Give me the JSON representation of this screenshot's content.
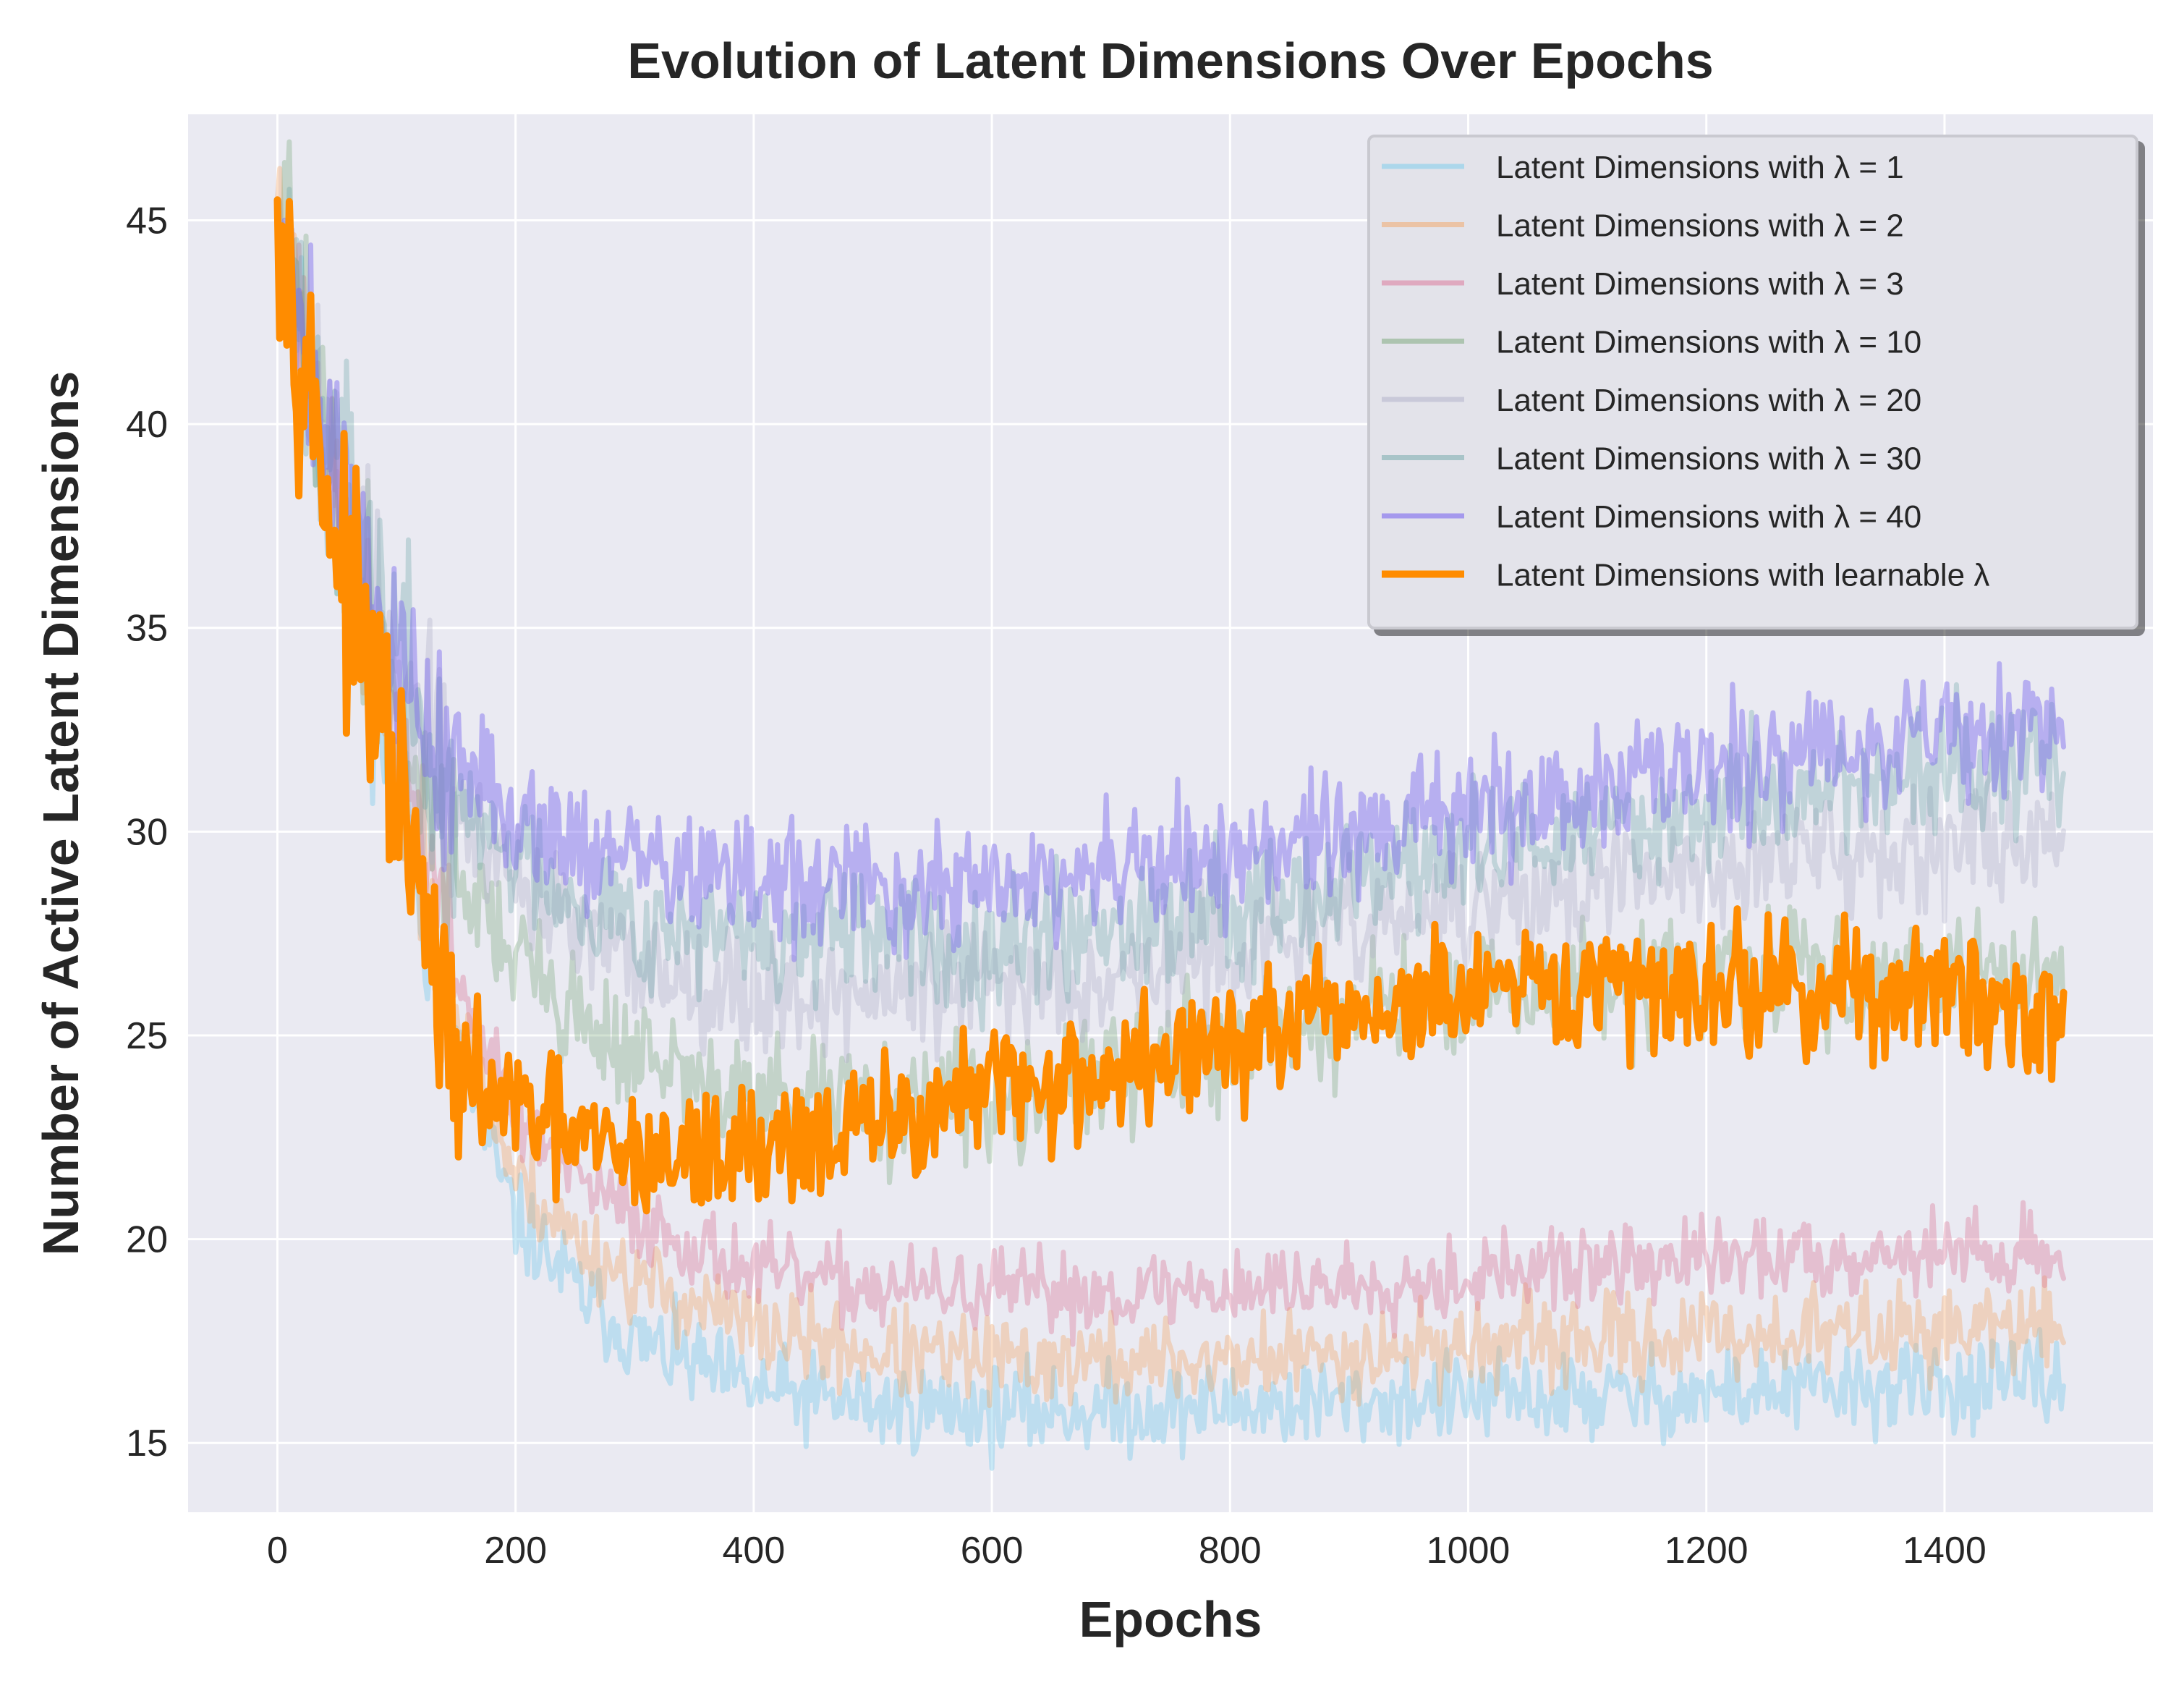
{
  "chart_data": {
    "type": "line",
    "title": "Evolution of Latent Dimensions Over Epochs",
    "xlabel": "Epochs",
    "ylabel": "Number of Active Latent Dimensions",
    "xlim": [
      -75,
      1575
    ],
    "ylim": [
      13.3,
      47.6
    ],
    "xticks": [
      0,
      200,
      400,
      600,
      800,
      1000,
      1200,
      1400
    ],
    "yticks": [
      15,
      20,
      25,
      30,
      35,
      40,
      45
    ],
    "grid": true,
    "legend_position": "top-right",
    "epochs": {
      "start": 0,
      "end": 1500
    },
    "series": [
      {
        "name": "Latent Dimensions with λ = 1",
        "color": "#87ceeb",
        "opacity": 0.45,
        "width": 7,
        "noise": 0.55,
        "seed": 11,
        "x": [
          0,
          50,
          100,
          150,
          200,
          250,
          300,
          400,
          500,
          600,
          700,
          800,
          900,
          1000,
          1100,
          1200,
          1300,
          1400,
          1500
        ],
        "y": [
          45.5,
          37.0,
          31.0,
          24.5,
          20.5,
          18.8,
          17.5,
          16.3,
          15.9,
          15.8,
          15.8,
          15.9,
          16.0,
          16.1,
          16.1,
          16.2,
          16.3,
          16.4,
          16.5
        ]
      },
      {
        "name": "Latent Dimensions with λ = 2",
        "color": "#f4a460",
        "opacity": 0.35,
        "width": 7,
        "noise": 0.55,
        "seed": 23,
        "x": [
          0,
          50,
          100,
          150,
          200,
          250,
          300,
          400,
          500,
          600,
          700,
          800,
          900,
          1000,
          1100,
          1200,
          1300,
          1400,
          1500
        ],
        "y": [
          45.5,
          37.5,
          31.5,
          25.5,
          21.5,
          20.0,
          19.0,
          17.8,
          17.2,
          17.0,
          17.0,
          17.0,
          17.2,
          17.4,
          17.5,
          17.6,
          17.7,
          17.8,
          17.8
        ]
      },
      {
        "name": "Latent Dimensions with λ = 3",
        "color": "#db7093",
        "opacity": 0.35,
        "width": 7,
        "noise": 0.5,
        "seed": 37,
        "x": [
          0,
          50,
          100,
          150,
          200,
          250,
          300,
          400,
          500,
          600,
          700,
          800,
          900,
          1000,
          1100,
          1200,
          1300,
          1400,
          1500
        ],
        "y": [
          45.5,
          38.0,
          32.5,
          26.5,
          23.0,
          21.5,
          20.5,
          19.2,
          18.8,
          18.7,
          18.7,
          18.8,
          18.9,
          19.1,
          19.3,
          19.5,
          19.6,
          19.7,
          19.6
        ]
      },
      {
        "name": "Latent Dimensions with λ = 10",
        "color": "#6b9e6b",
        "opacity": 0.3,
        "width": 7,
        "noise": 0.75,
        "seed": 41,
        "x": [
          0,
          50,
          100,
          150,
          200,
          250,
          300,
          400,
          500,
          600,
          700,
          800,
          900,
          1000,
          1100,
          1200,
          1300,
          1400,
          1500
        ],
        "y": [
          45.5,
          38.5,
          33.0,
          29.0,
          27.0,
          25.5,
          24.5,
          23.2,
          23.3,
          23.5,
          24.0,
          24.8,
          25.5,
          25.9,
          26.2,
          26.4,
          26.5,
          26.6,
          26.5
        ]
      },
      {
        "name": "Latent Dimensions with λ = 20",
        "color": "#b0b0c8",
        "opacity": 0.35,
        "width": 7,
        "noise": 0.75,
        "seed": 53,
        "x": [
          0,
          50,
          100,
          150,
          200,
          250,
          300,
          400,
          500,
          600,
          700,
          800,
          900,
          1000,
          1100,
          1200,
          1300,
          1400,
          1500
        ],
        "y": [
          45.5,
          39.0,
          33.5,
          30.5,
          29.0,
          27.5,
          26.8,
          26.0,
          26.0,
          26.2,
          26.5,
          27.0,
          27.6,
          28.1,
          28.6,
          29.1,
          29.5,
          29.8,
          29.8
        ]
      },
      {
        "name": "Latent Dimensions with λ = 30",
        "color": "#5f9ea0",
        "opacity": 0.3,
        "width": 7,
        "noise": 0.8,
        "seed": 67,
        "x": [
          0,
          50,
          100,
          150,
          200,
          250,
          300,
          400,
          500,
          600,
          700,
          800,
          900,
          1000,
          1100,
          1200,
          1300,
          1400,
          1500
        ],
        "y": [
          45.5,
          39.0,
          34.0,
          30.5,
          29.5,
          28.5,
          27.8,
          27.3,
          27.3,
          27.4,
          27.8,
          28.3,
          28.9,
          29.5,
          30.0,
          30.6,
          31.1,
          31.5,
          31.6
        ]
      },
      {
        "name": "Latent Dimensions with λ = 40",
        "color": "#7b68ee",
        "opacity": 0.45,
        "width": 7,
        "noise": 0.8,
        "seed": 79,
        "x": [
          0,
          50,
          100,
          150,
          200,
          250,
          300,
          400,
          500,
          600,
          700,
          800,
          900,
          1000,
          1100,
          1200,
          1300,
          1400,
          1500
        ],
        "y": [
          45.5,
          39.0,
          34.0,
          31.5,
          30.5,
          29.8,
          29.3,
          28.7,
          28.6,
          28.6,
          28.9,
          29.4,
          29.9,
          30.5,
          31.0,
          31.6,
          32.1,
          32.5,
          32.6
        ]
      },
      {
        "name": "Latent Dimensions with learnable λ",
        "color": "#ff8c00",
        "opacity": 1.0,
        "width": 10,
        "noise": 0.8,
        "seed": 97,
        "x": [
          0,
          50,
          100,
          150,
          200,
          250,
          300,
          350,
          400,
          450,
          500,
          550,
          600,
          700,
          800,
          900,
          1000,
          1100,
          1200,
          1300,
          1400,
          1500
        ],
        "y": [
          45.5,
          37.0,
          31.0,
          24.0,
          23.2,
          22.4,
          22.0,
          22.0,
          22.3,
          22.5,
          22.7,
          23.2,
          23.6,
          24.1,
          24.8,
          25.5,
          25.9,
          26.1,
          26.3,
          26.1,
          26.0,
          25.5
        ]
      }
    ]
  }
}
